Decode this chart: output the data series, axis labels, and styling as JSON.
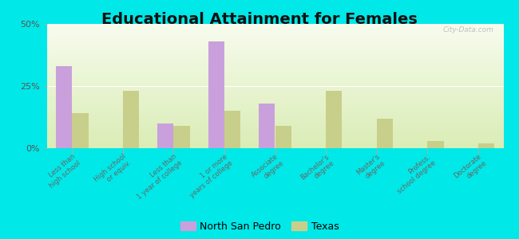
{
  "title": "Educational Attainment for Females",
  "categories": [
    "Less than\nhigh school",
    "High school\nor equiv.",
    "Less than\n1 year of college",
    "1 or more\nyears of college",
    "Associate\ndegree",
    "Bachelor's\ndegree",
    "Master's\ndegree",
    "Profess.\nschool degree",
    "Doctorate\ndegree"
  ],
  "north_san_pedro": [
    33.0,
    0.0,
    10.0,
    43.0,
    18.0,
    0.0,
    0.0,
    0.0,
    0.0
  ],
  "texas": [
    14.0,
    23.0,
    9.0,
    15.0,
    9.0,
    23.0,
    12.0,
    3.0,
    2.0
  ],
  "color_nsp": "#c9a0dc",
  "color_tx": "#c8cf8a",
  "background_outer": "#00e8e8",
  "ylim": [
    0,
    50
  ],
  "yticks": [
    0,
    25,
    50
  ],
  "ytick_labels": [
    "0%",
    "25%",
    "50%"
  ],
  "bar_width": 0.32,
  "title_fontsize": 14,
  "legend_labels": [
    "North San Pedro",
    "Texas"
  ]
}
